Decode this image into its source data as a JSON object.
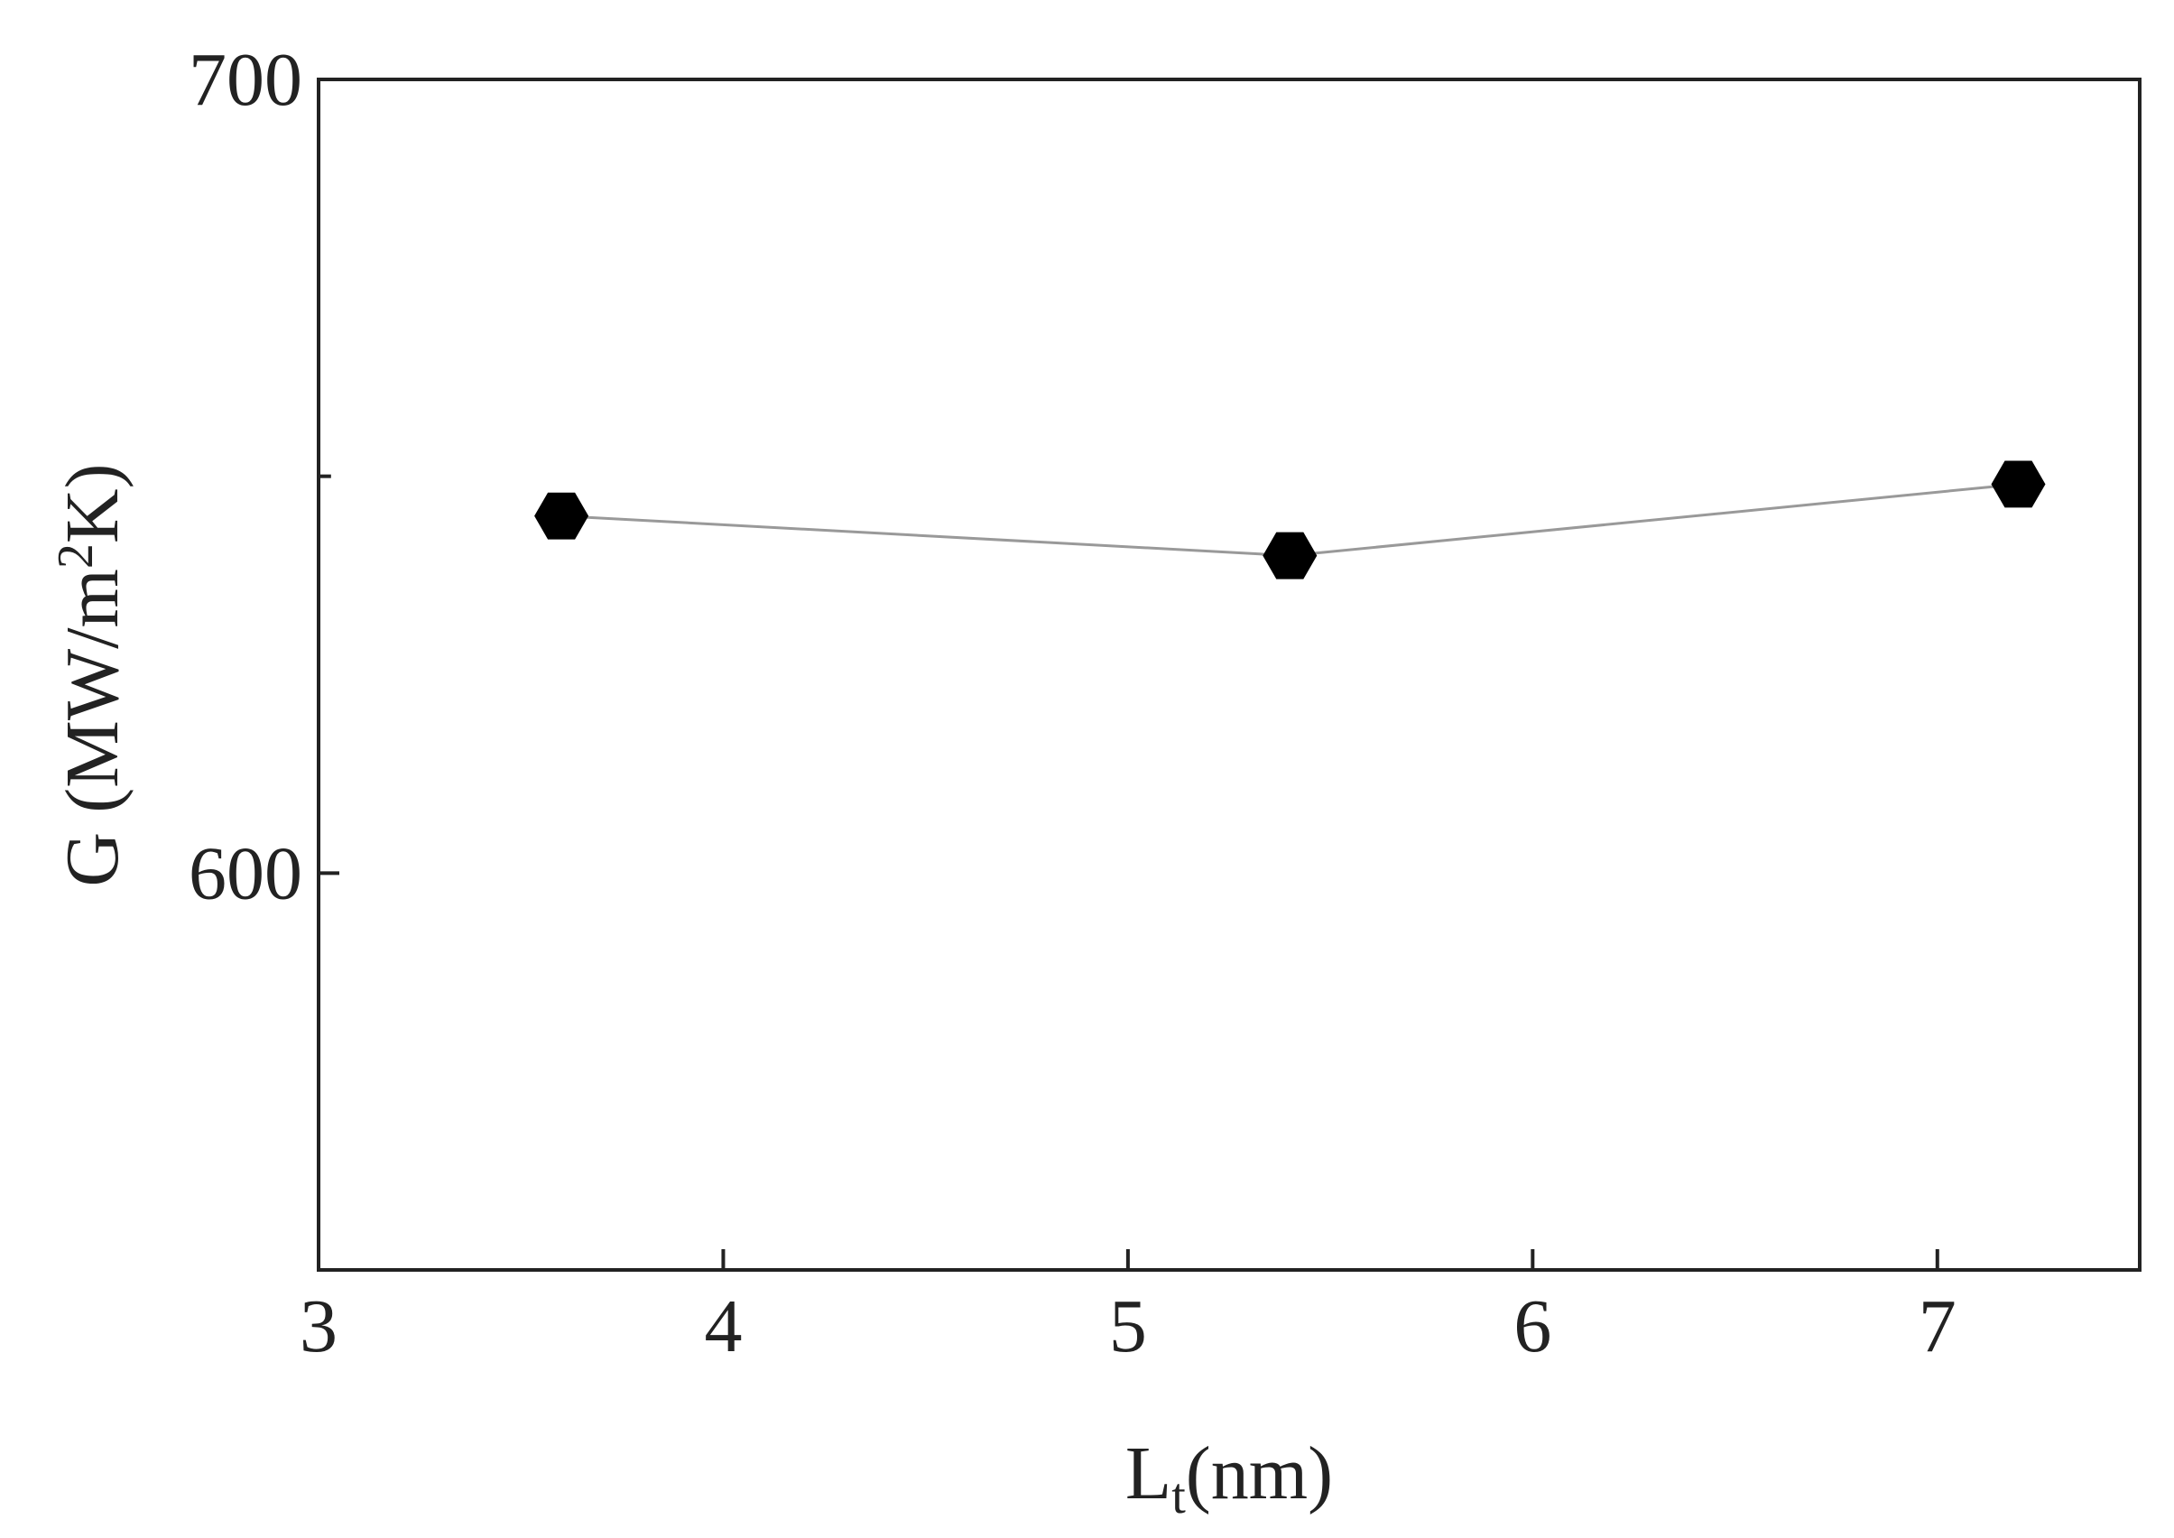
{
  "chart_data": {
    "type": "line",
    "xlabel": [
      "L",
      "t",
      "(nm)"
    ],
    "ylabel": [
      "G (MW/m",
      "2",
      "K)"
    ],
    "x": [
      3.6,
      5.4,
      7.2
    ],
    "series": [
      {
        "color": "#000000",
        "line_color": "#999999",
        "marker": "hexagon",
        "values": [
          645,
          640,
          649
        ]
      }
    ],
    "xlim": [
      3,
      7.5
    ],
    "xticks": [
      3,
      4,
      5,
      6,
      7
    ],
    "ylim": [
      550,
      700
    ],
    "yticks": [
      600,
      700
    ],
    "yminor_ticks": [
      650
    ],
    "grid": false
  }
}
